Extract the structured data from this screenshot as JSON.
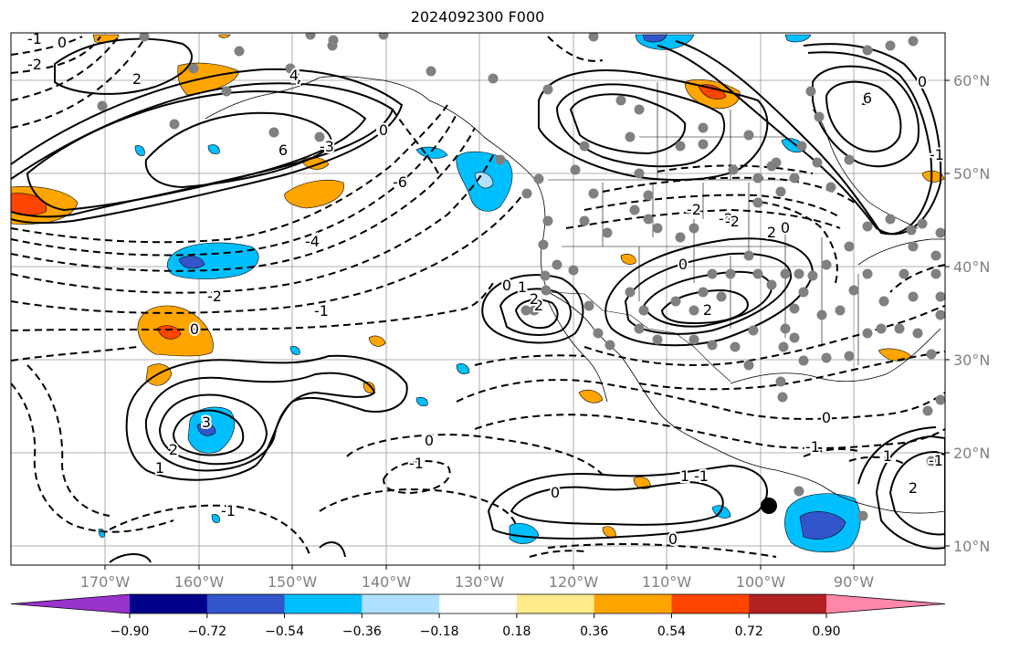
{
  "title": "2024092300 F000",
  "lon_ticks": [
    "170°W",
    "160°W",
    "150°W",
    "140°W",
    "130°W",
    "120°W",
    "110°W",
    "100°W",
    "90°W"
  ],
  "lat_ticks": [
    "60°N",
    "50°N",
    "40°N",
    "30°N",
    "20°N",
    "10°N"
  ],
  "colorbar": {
    "tick_labels": [
      "−0.90",
      "−0.72",
      "−0.54",
      "−0.36",
      "−0.18",
      "0.18",
      "0.36",
      "0.54",
      "0.72",
      "0.90"
    ],
    "colors": [
      "#9933cc",
      "#00008b",
      "#3355cc",
      "#00bfff",
      "#b0e0ff",
      "#ffffff",
      "#ffeb8a",
      "#ffa500",
      "#ff4500",
      "#b22222",
      "#ff88aa"
    ]
  },
  "colors": {
    "positive_anomaly": "#ffa500",
    "strong_positive": "#ff4500",
    "negative_anomaly": "#00bfff",
    "strong_negative": "#3355cc",
    "contour": "#000000",
    "grid": "#999999",
    "station": "#808080",
    "tick_label": "#808080"
  },
  "contour_labels": [
    {
      "text": "0"
    },
    {
      "text": "-1"
    },
    {
      "text": "-2"
    },
    {
      "text": "2"
    },
    {
      "text": "4"
    },
    {
      "text": "6"
    },
    {
      "text": "0"
    },
    {
      "text": "-6"
    },
    {
      "text": "-4"
    },
    {
      "text": "-2"
    },
    {
      "text": "-1"
    },
    {
      "text": "0"
    },
    {
      "text": "3"
    },
    {
      "text": "2"
    },
    {
      "text": "1"
    },
    {
      "text": "0"
    },
    {
      "text": "-1"
    },
    {
      "text": "-1"
    },
    {
      "text": "0"
    },
    {
      "text": "1"
    },
    {
      "text": "2"
    },
    {
      "text": "2"
    },
    {
      "text": "0"
    },
    {
      "text": "-2"
    },
    {
      "text": "2"
    },
    {
      "text": "0"
    },
    {
      "text": "-2"
    },
    {
      "text": "2"
    },
    {
      "text": "-2"
    },
    {
      "text": "0"
    },
    {
      "text": "-1"
    },
    {
      "text": "0"
    },
    {
      "text": "0"
    },
    {
      "text": "1"
    },
    {
      "text": "-1"
    },
    {
      "text": "1"
    },
    {
      "text": "2"
    },
    {
      "text": "0"
    },
    {
      "text": "-1"
    },
    {
      "text": "2"
    },
    {
      "text": "6"
    },
    {
      "text": "-3"
    },
    {
      "text": "4"
    },
    {
      "text": "0"
    },
    {
      "text": "-1"
    }
  ]
}
